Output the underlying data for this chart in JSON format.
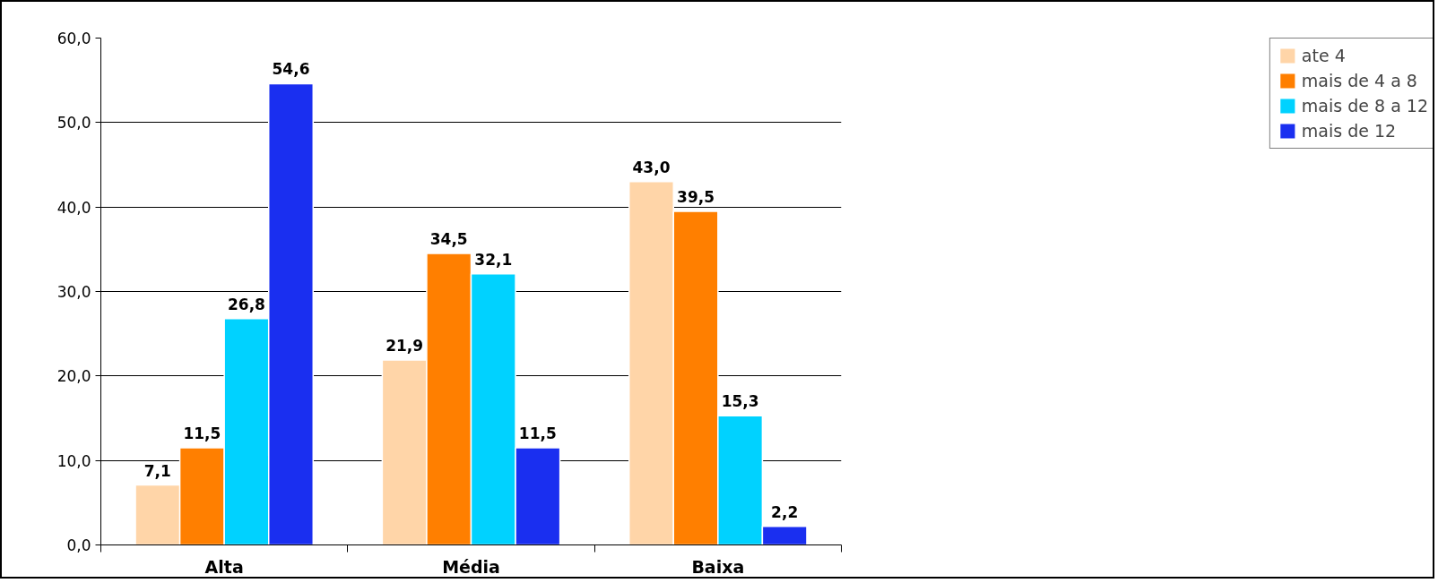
{
  "chart_data": {
    "type": "bar",
    "categories": [
      "Alta",
      "Média",
      "Baixa"
    ],
    "series": [
      {
        "name": "ate 4",
        "color": "#ffd5a8",
        "values": [
          7.1,
          21.9,
          43.0
        ],
        "value_labels": [
          "7,1",
          "21,9",
          "43,0"
        ]
      },
      {
        "name": "mais de 4 a 8",
        "color": "#ff7f00",
        "values": [
          11.5,
          34.5,
          39.5
        ],
        "value_labels": [
          "11,5",
          "34,5",
          "39,5"
        ]
      },
      {
        "name": "mais de 8 a 12",
        "color": "#00d2ff",
        "values": [
          26.8,
          32.1,
          15.3
        ],
        "value_labels": [
          "26,8",
          "32,1",
          "15,3"
        ]
      },
      {
        "name": "mais de 12",
        "color": "#1a2ff0",
        "values": [
          54.6,
          11.5,
          2.2
        ],
        "value_labels": [
          "54,6",
          "11,5",
          "2,2"
        ]
      }
    ],
    "ylim": [
      0,
      60
    ],
    "yticks": [
      {
        "value": 0,
        "label": "0,0"
      },
      {
        "value": 10,
        "label": "10,0"
      },
      {
        "value": 20,
        "label": "20,0"
      },
      {
        "value": 30,
        "label": "30,0"
      },
      {
        "value": 40,
        "label": "40,0"
      },
      {
        "value": 50,
        "label": "50,0"
      },
      {
        "value": 60,
        "label": "60,0"
      }
    ],
    "grid": "y",
    "legend": "right"
  }
}
